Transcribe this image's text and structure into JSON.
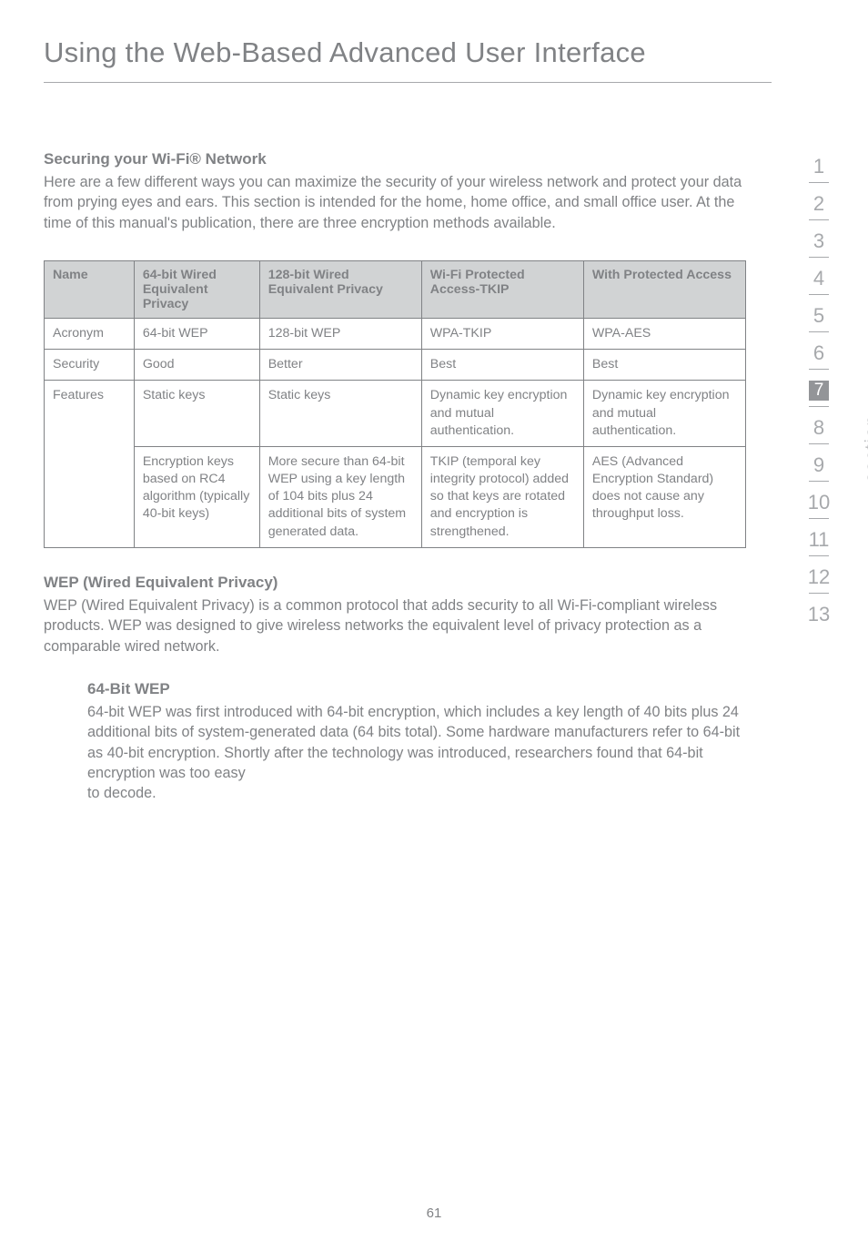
{
  "title": "Using the Web-Based Advanced User Interface",
  "sec1": {
    "heading": "Securing your Wi-Fi® Network",
    "body": "Here are a few different ways you can maximize the security of your wireless network and protect your data from prying eyes and ears. This section is intended for the home, home office, and small office user. At the time of this manual's publication, there are three encryption methods available."
  },
  "table": {
    "headers": [
      "Name",
      "64-bit Wired Equivalent Privacy",
      "128-bit Wired Equivalent Privacy",
      "Wi-Fi Protected Access-TKIP",
      "With Protected Access"
    ],
    "rows": [
      [
        "Acronym",
        "64-bit WEP",
        "128-bit WEP",
        "WPA-TKIP",
        "WPA-AES"
      ],
      [
        "Security",
        "Good",
        "Better",
        "Best",
        "Best"
      ],
      [
        "Features",
        "Static keys",
        "Static keys",
        "Dynamic key encryption and mutual authentication.",
        "Dynamic key encryption and mutual authentication."
      ],
      [
        "",
        "Encryption keys based on RC4 algorithm (typically 40-bit keys)",
        "More secure than 64-bit WEP using a key length of 104 bits plus 24 additional bits of system generated data.",
        "TKIP (temporal key integrity protocol) added so that keys are rotated and encryption is strengthened.",
        "AES (Advanced Encryption Standard) does not cause any throughput loss."
      ]
    ]
  },
  "wep": {
    "heading": "WEP (Wired Equivalent Privacy)",
    "body": "WEP (Wired Equivalent Privacy) is a common protocol that adds security to all Wi-Fi-compliant wireless products. WEP was designed to give wireless networks the equivalent level of privacy protection as a comparable wired network."
  },
  "bit64": {
    "heading": "64-Bit WEP",
    "body": "64-bit WEP was first introduced with 64-bit encryption, which includes a key length of 40 bits plus 24 additional bits of system-generated data (64 bits total). Some hardware manufacturers refer to 64-bit as 40-bit encryption. Shortly after the technology was introduced, researchers found that 64-bit encryption was too easy",
    "body2": "to decode."
  },
  "sidebar": {
    "items": [
      "1",
      "2",
      "3",
      "4",
      "5",
      "6",
      "7",
      "8",
      "9",
      "10",
      "11",
      "12",
      "13"
    ],
    "active_index": 6,
    "section_label": "section"
  },
  "page_number": "61"
}
